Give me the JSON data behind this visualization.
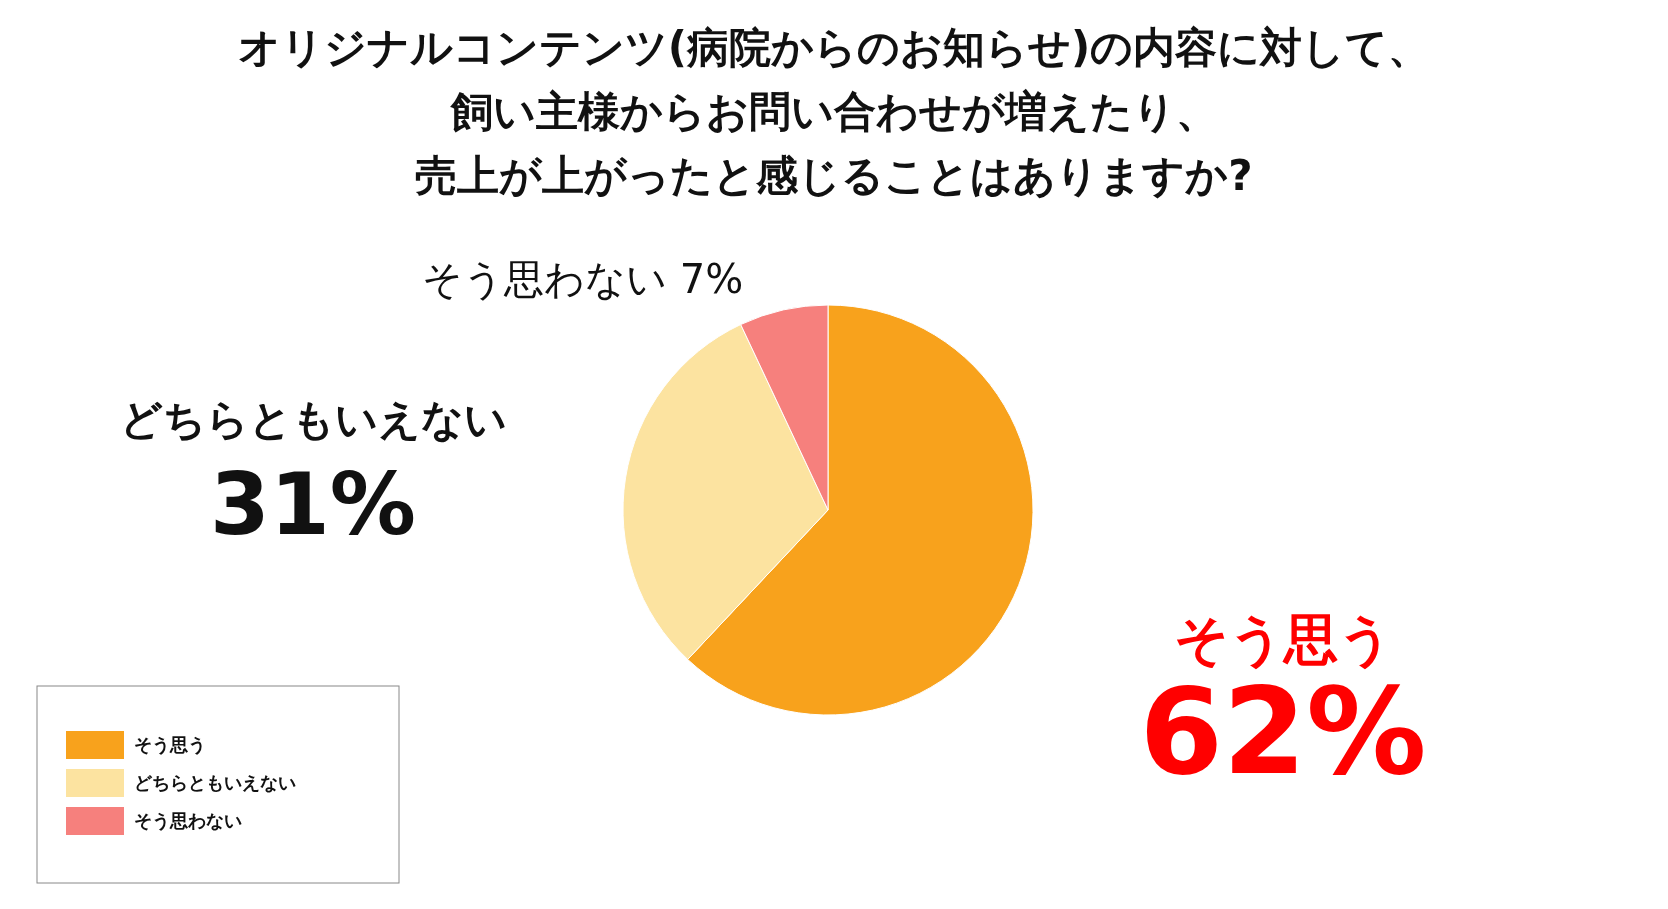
{
  "chart_data": {
    "type": "pie",
    "title": "オリジナルコンテンツ(病院からのお知らせ)の内容に対して、飼い主様からお問い合わせが増えたり、売上が上がったと感じることはありますか?",
    "categories": [
      "そう思う",
      "どちらともいえない",
      "そう思わない"
    ],
    "values": [
      62,
      31,
      7
    ],
    "colors": [
      "#f8a21c",
      "#fce3a0",
      "#f6807d"
    ],
    "value_labels": [
      "62%",
      "31%",
      "7%"
    ],
    "legend": "bottom left"
  }
}
